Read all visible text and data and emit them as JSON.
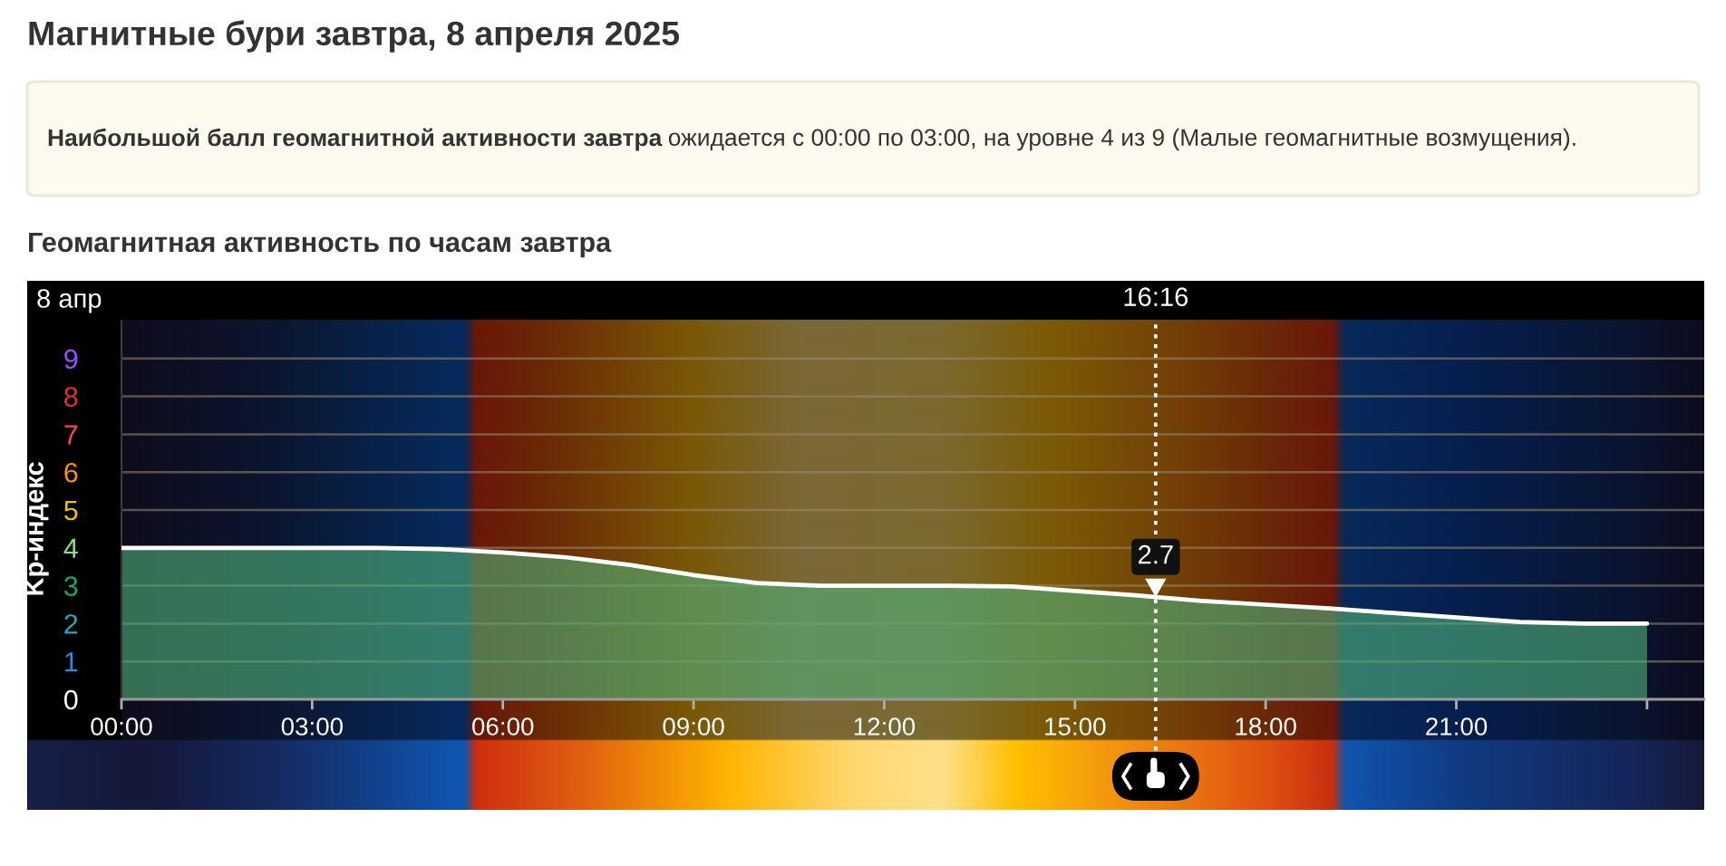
{
  "chart_data": {
    "type": "area",
    "title": "Магнитные бури завтра, 8 апреля 2025",
    "subtitle": "Геомагнитная активность по часам завтра",
    "ylabel": "Kp-индекс",
    "annotations": [
      "Наибольшой балл геомагнитной активности завтра",
      "ожидается с 00:00 по 03:00, на уровне 4 из 9 (Малые геомагнитные возмущения).",
      "8 апр",
      {
        "text": "2.7",
        "x": 16.27,
        "y": 2.7
      }
    ],
    "x": [
      0,
      1,
      2,
      3,
      4,
      5,
      6,
      7,
      8,
      9,
      10,
      11,
      12,
      13,
      14,
      15,
      16,
      16.27,
      17,
      18,
      19,
      20,
      21,
      22,
      23,
      24
    ],
    "series": [
      {
        "color": "#4fae78",
        "values": [
          4,
          4,
          4,
          4,
          4,
          3.97,
          3.88,
          3.75,
          3.55,
          3.28,
          3.07,
          3,
          3,
          3,
          2.98,
          2.86,
          2.74,
          2.7,
          2.6,
          2.5,
          2.4,
          2.28,
          2.16,
          2.04,
          2,
          2
        ]
      }
    ],
    "xlim": [
      0,
      24.9
    ],
    "xticks": [
      {
        "value": 0,
        "label": "00:00"
      },
      {
        "value": 3,
        "label": "03:00"
      },
      {
        "value": 6,
        "label": "06:00"
      },
      {
        "value": 9,
        "label": "09:00"
      },
      {
        "value": 12,
        "label": "12:00"
      },
      {
        "value": 15,
        "label": "15:00"
      },
      {
        "value": 18,
        "label": "18:00"
      },
      {
        "value": 21,
        "label": "21:00"
      },
      {
        "value": 24,
        "label": null
      }
    ],
    "ylim": [
      0,
      10
    ],
    "yticks": [
      0,
      1,
      2,
      3,
      4,
      5,
      6,
      7,
      8,
      9
    ],
    "grid": "y",
    "ref_lines": [
      {
        "axis": "x",
        "value": 16.27,
        "label": "16:16",
        "color": "#ffffff",
        "line_style": "dotted"
      }
    ]
  }
}
